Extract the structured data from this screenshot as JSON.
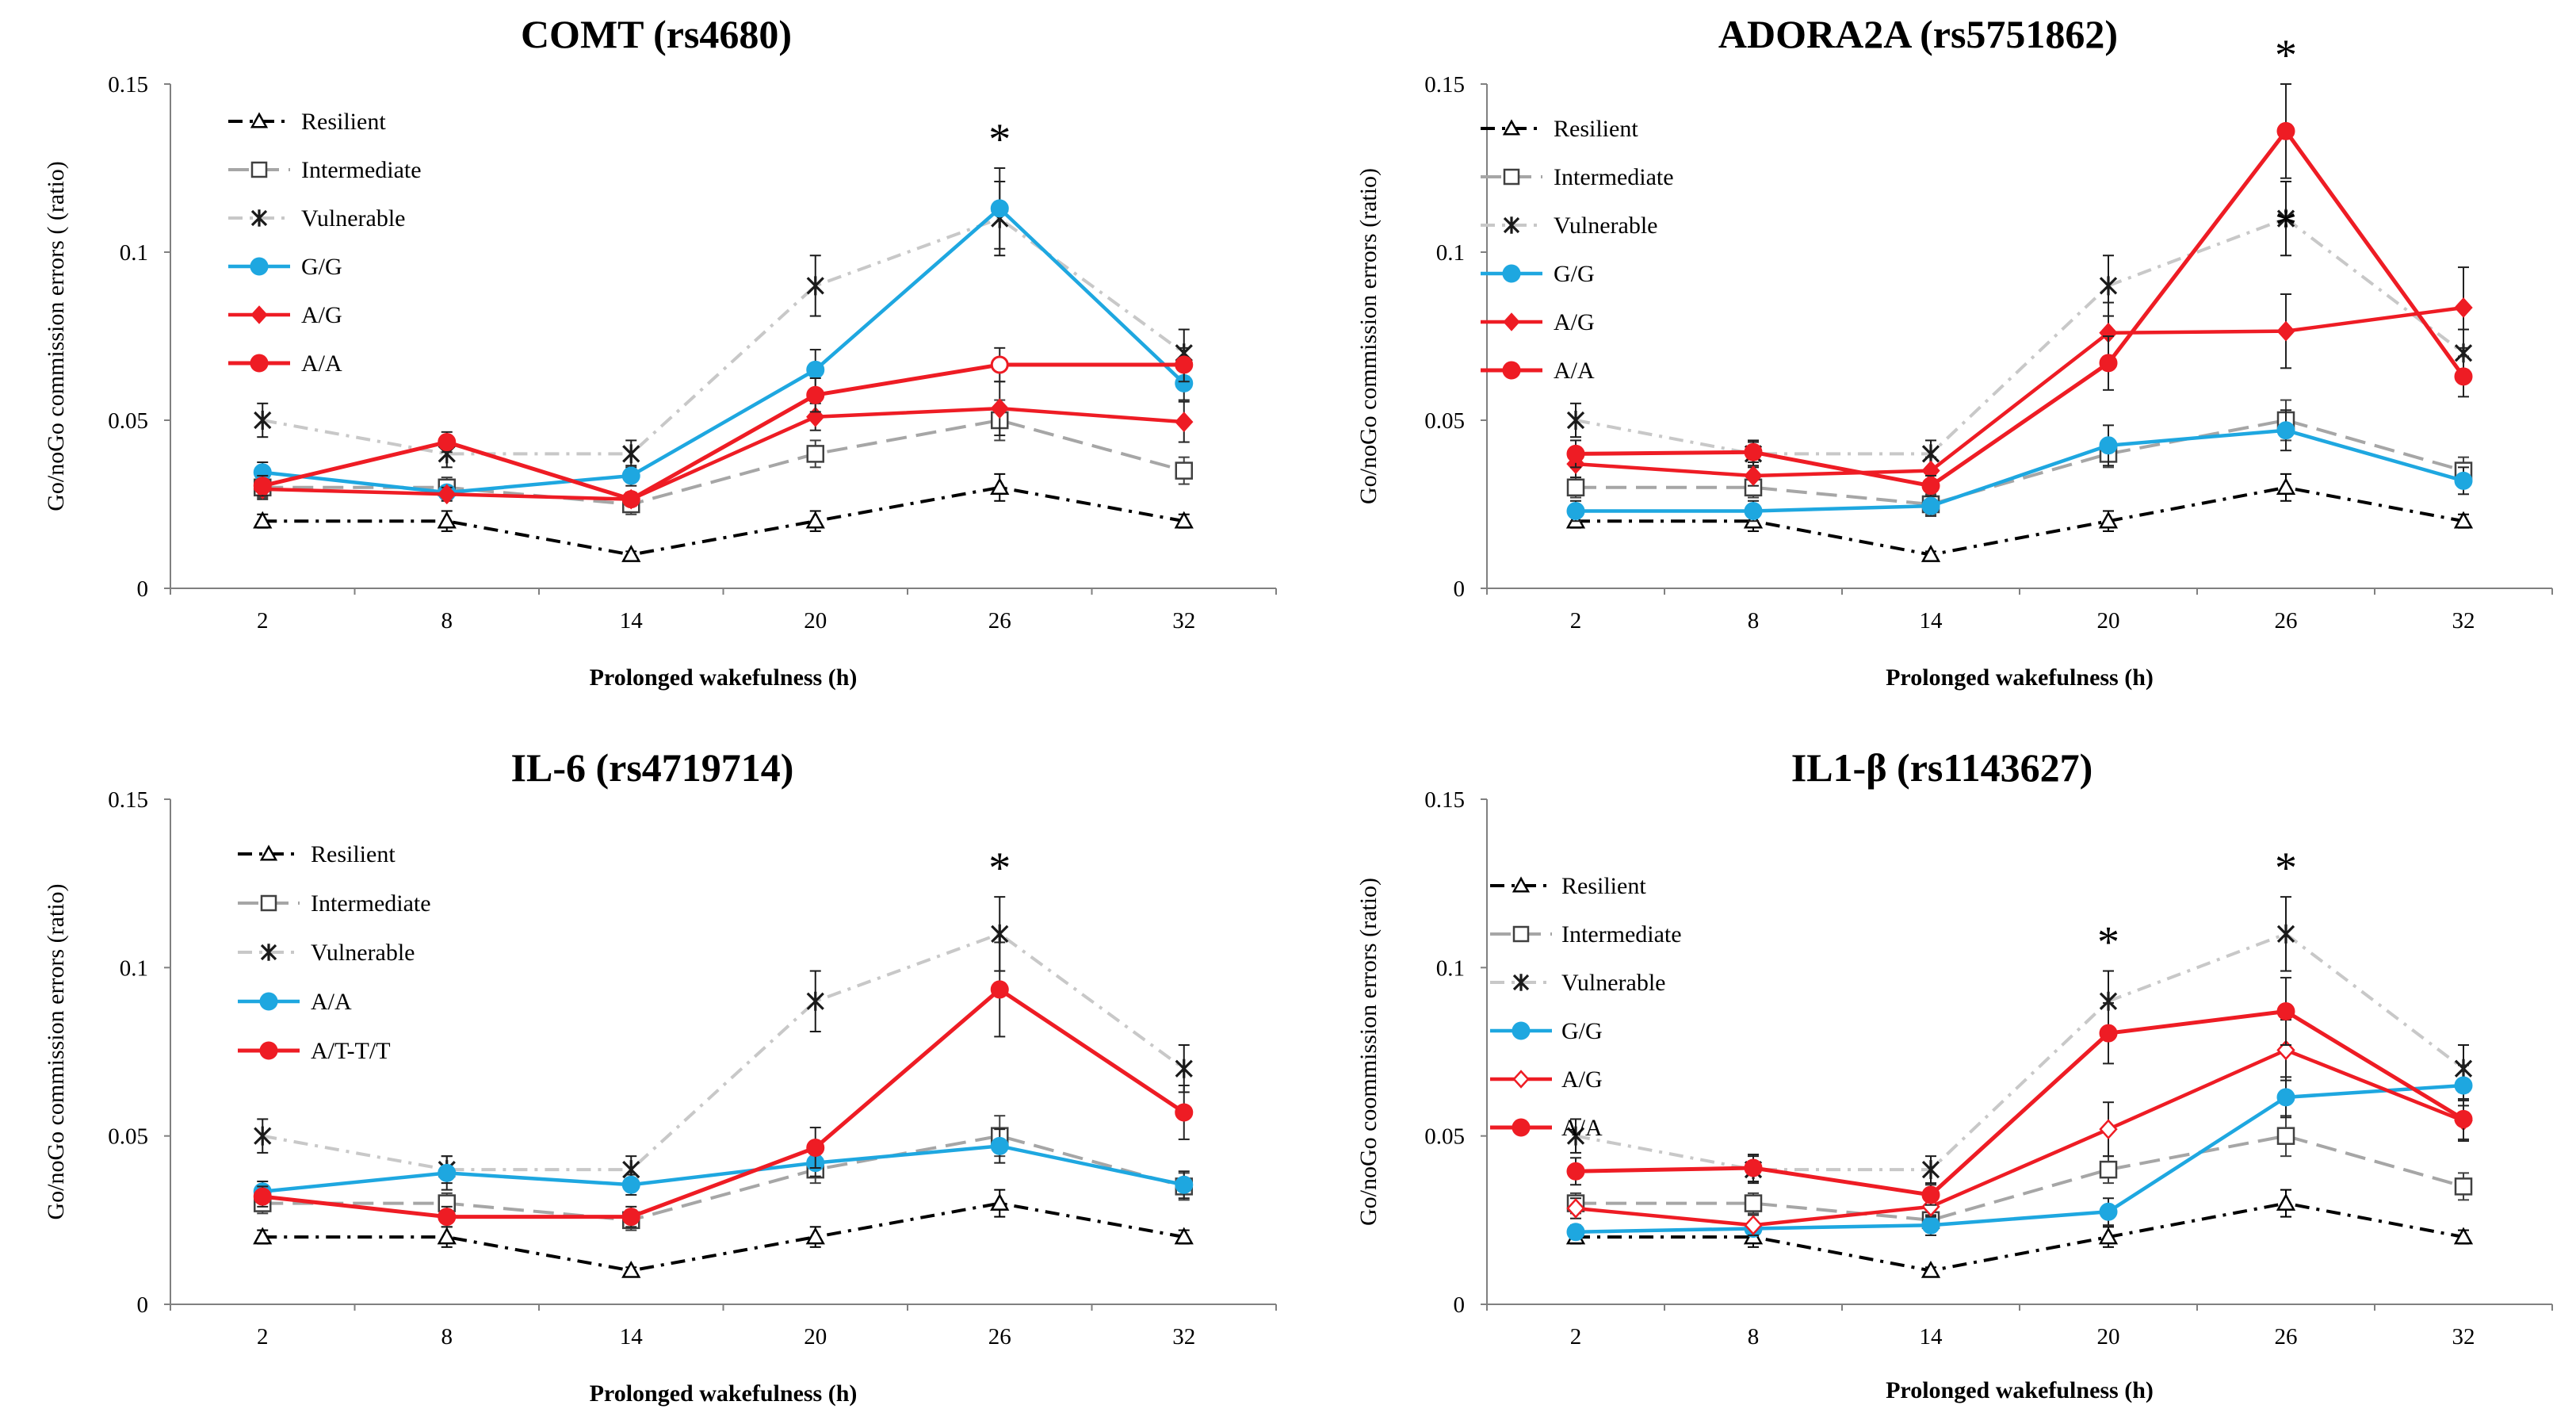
{
  "chart_data": [
    {
      "type": "line",
      "title": "COMT (rs4680)",
      "xlabel": "Prolonged wakefulness (h)",
      "ylabel": "Go/noGo commission errors ( (ratio)",
      "categories": [
        "2",
        "8",
        "14",
        "20",
        "26",
        "32"
      ],
      "y_ticks": [
        "0",
        "0.05",
        "0.1",
        "0.15"
      ],
      "ylim": [
        0,
        0.15
      ],
      "annotations": [
        "*"
      ],
      "annotation_at": [
        4
      ],
      "series": [
        {
          "name": "Resilient",
          "style": "resilient",
          "values": [
            0.02,
            0.02,
            0.01,
            0.02,
            0.03,
            0.02
          ],
          "err": [
            0.002,
            0.003,
            0.001,
            0.003,
            0.004,
            0.002
          ]
        },
        {
          "name": "Intermediate",
          "style": "intermediate",
          "values": [
            0.03,
            0.03,
            0.025,
            0.04,
            0.05,
            0.035
          ],
          "err": [
            0.003,
            0.003,
            0.003,
            0.004,
            0.006,
            0.004
          ]
        },
        {
          "name": "Vulnerable",
          "style": "vulnerable",
          "values": [
            0.05,
            0.04,
            0.04,
            0.09,
            0.11,
            0.07
          ],
          "err": [
            0.005,
            0.004,
            0.004,
            0.009,
            0.011,
            0.007
          ]
        },
        {
          "name": "G/G",
          "style": "blue",
          "values": [
            0.0345,
            0.0285,
            0.0335,
            0.065,
            0.113,
            0.061
          ],
          "err": [
            0.003,
            0.002,
            0.003,
            0.006,
            0.012,
            0.005
          ]
        },
        {
          "name": "A/G",
          "style": "red-diamond",
          "values": [
            0.0295,
            0.028,
            0.0265,
            0.051,
            0.0535,
            0.0495
          ],
          "err": [
            0.003,
            0.002,
            0.002,
            0.004,
            0.008,
            0.006
          ]
        },
        {
          "name": "A/A",
          "style": "red",
          "values": [
            0.0305,
            0.0435,
            0.0265,
            0.0575,
            0.0665,
            0.0665
          ],
          "err": [
            0.003,
            0.003,
            0.002,
            0.005,
            0.005,
            0.005
          ],
          "open_points": [
            4
          ]
        }
      ]
    },
    {
      "type": "line",
      "title": "ADORA2A (rs5751862)",
      "xlabel": "Prolonged wakefulness (h)",
      "ylabel": "Go/noGo commission errors (ratio)",
      "categories": [
        "2",
        "8",
        "14",
        "20",
        "26",
        "32"
      ],
      "y_ticks": [
        "0",
        "0.05",
        "0.1",
        "0.15"
      ],
      "ylim": [
        0,
        0.15
      ],
      "annotations": [
        "*",
        "*"
      ],
      "annotation_at": [
        4,
        4
      ],
      "series": [
        {
          "name": "Resilient",
          "style": "resilient",
          "values": [
            0.02,
            0.02,
            0.01,
            0.02,
            0.03,
            0.02
          ],
          "err": [
            0.002,
            0.003,
            0.001,
            0.003,
            0.004,
            0.002
          ]
        },
        {
          "name": "Intermediate",
          "style": "intermediate",
          "values": [
            0.03,
            0.03,
            0.025,
            0.04,
            0.05,
            0.035
          ],
          "err": [
            0.003,
            0.003,
            0.003,
            0.004,
            0.006,
            0.004
          ]
        },
        {
          "name": "Vulnerable",
          "style": "vulnerable",
          "values": [
            0.05,
            0.04,
            0.04,
            0.09,
            0.11,
            0.07
          ],
          "err": [
            0.005,
            0.004,
            0.004,
            0.009,
            0.011,
            0.007
          ]
        },
        {
          "name": "G/G",
          "style": "blue",
          "values": [
            0.023,
            0.023,
            0.0245,
            0.0425,
            0.047,
            0.032
          ],
          "err": [
            0.003,
            0.003,
            0.003,
            0.006,
            0.006,
            0.004
          ]
        },
        {
          "name": "A/G",
          "style": "red-diamond",
          "values": [
            0.037,
            0.0335,
            0.035,
            0.076,
            0.0765,
            0.0835
          ],
          "err": [
            0.004,
            0.003,
            0.004,
            0.009,
            0.011,
            0.012
          ]
        },
        {
          "name": "A/A",
          "style": "red",
          "values": [
            0.04,
            0.0405,
            0.0305,
            0.067,
            0.136,
            0.063
          ],
          "err": [
            0.004,
            0.003,
            0.003,
            0.008,
            0.014,
            0.006
          ]
        }
      ]
    },
    {
      "type": "line",
      "title": "IL-6 (rs4719714)",
      "xlabel": "Prolonged wakefulness (h)",
      "ylabel": "Go/noGo commission errors (ratio)",
      "categories": [
        "2",
        "8",
        "14",
        "20",
        "26",
        "32"
      ],
      "y_ticks": [
        "0",
        "0.05",
        "0.1",
        "0.15"
      ],
      "ylim": [
        0,
        0.15
      ],
      "annotations": [
        "*"
      ],
      "annotation_at": [
        4
      ],
      "series": [
        {
          "name": "Resilient",
          "style": "resilient",
          "values": [
            0.02,
            0.02,
            0.01,
            0.02,
            0.03,
            0.02
          ],
          "err": [
            0.002,
            0.003,
            0.001,
            0.003,
            0.004,
            0.002
          ]
        },
        {
          "name": "Intermediate",
          "style": "intermediate",
          "values": [
            0.03,
            0.03,
            0.025,
            0.04,
            0.05,
            0.035
          ],
          "err": [
            0.003,
            0.003,
            0.003,
            0.004,
            0.006,
            0.004
          ]
        },
        {
          "name": "Vulnerable",
          "style": "vulnerable",
          "values": [
            0.05,
            0.04,
            0.04,
            0.09,
            0.11,
            0.07
          ],
          "err": [
            0.005,
            0.004,
            0.004,
            0.009,
            0.011,
            0.007
          ]
        },
        {
          "name": "A/A",
          "style": "blue",
          "values": [
            0.0335,
            0.039,
            0.0355,
            0.042,
            0.047,
            0.0355
          ],
          "err": [
            0.003,
            0.005,
            0.003,
            0.004,
            0.005,
            0.004
          ]
        },
        {
          "name": "A/T-T/T",
          "style": "red",
          "values": [
            0.032,
            0.026,
            0.026,
            0.0465,
            0.0935,
            0.057
          ],
          "err": [
            0.003,
            0.003,
            0.003,
            0.006,
            0.014,
            0.008
          ]
        }
      ]
    },
    {
      "type": "line",
      "title": "IL1-β (rs1143627)",
      "xlabel": "Prolonged wakefulness (h)",
      "ylabel": "Go/noGo coommission errors (ratio)",
      "categories": [
        "2",
        "8",
        "14",
        "20",
        "26",
        "32"
      ],
      "y_ticks": [
        "0",
        "0.05",
        "0.1",
        "0.15"
      ],
      "ylim": [
        0,
        0.15
      ],
      "annotations": [
        "*",
        "*"
      ],
      "annotation_at": [
        3,
        4
      ],
      "series": [
        {
          "name": "Resilient",
          "style": "resilient",
          "values": [
            0.02,
            0.02,
            0.01,
            0.02,
            0.03,
            0.02
          ],
          "err": [
            0.002,
            0.003,
            0.001,
            0.003,
            0.004,
            0.002
          ]
        },
        {
          "name": "Intermediate",
          "style": "intermediate",
          "values": [
            0.03,
            0.03,
            0.025,
            0.04,
            0.05,
            0.035
          ],
          "err": [
            0.003,
            0.003,
            0.003,
            0.004,
            0.006,
            0.004
          ]
        },
        {
          "name": "Vulnerable",
          "style": "vulnerable",
          "values": [
            0.05,
            0.04,
            0.04,
            0.09,
            0.11,
            0.07
          ],
          "err": [
            0.005,
            0.004,
            0.004,
            0.009,
            0.011,
            0.007
          ]
        },
        {
          "name": "G/G",
          "style": "blue",
          "values": [
            0.0215,
            0.0225,
            0.0235,
            0.0275,
            0.0615,
            0.065
          ],
          "err": [
            0.002,
            0.002,
            0.003,
            0.004,
            0.006,
            0.006
          ]
        },
        {
          "name": "A/G",
          "style": "red-open-diamond",
          "values": [
            0.0285,
            0.0235,
            0.029,
            0.052,
            0.0755,
            0.0545
          ],
          "err": [
            0.003,
            0.003,
            0.003,
            0.008,
            0.009,
            0.006
          ]
        },
        {
          "name": "A/A",
          "style": "red",
          "values": [
            0.0395,
            0.0405,
            0.0325,
            0.0805,
            0.087,
            0.055
          ],
          "err": [
            0.004,
            0.004,
            0.003,
            0.009,
            0.01,
            0.006
          ]
        }
      ]
    }
  ]
}
